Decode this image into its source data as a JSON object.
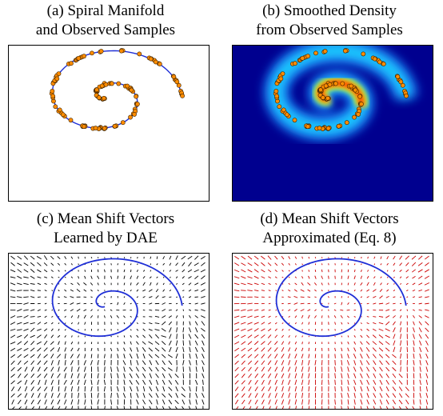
{
  "figure": {
    "panels": [
      {
        "id": "a",
        "caption_line1": "(a) Spiral Manifold",
        "caption_line2": "and Observed Samples"
      },
      {
        "id": "b",
        "caption_line1": "(b) Smoothed Density",
        "caption_line2": "from Observed Samples"
      },
      {
        "id": "c",
        "caption_line1": "(c) Mean Shift Vectors",
        "caption_line2": "Learned by DAE"
      },
      {
        "id": "d",
        "caption_line1": "(d) Mean Shift Vectors",
        "caption_line2": "Approximated (Eq. 8)"
      }
    ],
    "colors": {
      "manifold_curve": "#1f2fd6",
      "sample_fill": "#ff8c00",
      "sample_edge": "#3a2200",
      "vectors_learned": "#000000",
      "vectors_approx": "#cc0000",
      "density_low": "#00008f",
      "density_high": "#ff0000"
    },
    "spiral": {
      "theta_start_deg": 135,
      "theta_end_deg": 720,
      "center": [
        0.487,
        0.335
      ],
      "radius_start": 0.01,
      "radius_end": 0.38,
      "aspect_y": 0.46,
      "sample_count": 120
    }
  }
}
